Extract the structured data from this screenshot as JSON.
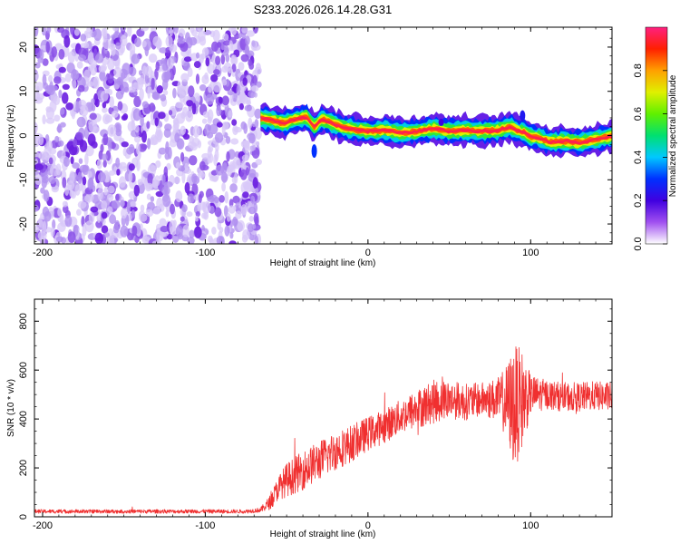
{
  "title": "S233.2026.026.14.28.G31",
  "chart_data": [
    {
      "type": "heatmap",
      "id": "spectrogram",
      "xlabel": "Height of straight line (km)",
      "ylabel": "Frequency (Hz)",
      "xlim": [
        -205,
        150
      ],
      "ylim": [
        -24.5,
        24.5
      ],
      "xticks": [
        -200,
        -100,
        0,
        100
      ],
      "yticks": [
        -20,
        -10,
        0,
        10,
        20
      ],
      "noise_region_x": [
        -205,
        -67
      ],
      "signal_ridge": {
        "x": [
          -66,
          -60,
          -52,
          -45,
          -38,
          -33,
          -28,
          -22,
          -15,
          -8,
          0,
          10,
          20,
          30,
          40,
          50,
          60,
          70,
          80,
          88,
          92,
          96,
          100,
          105,
          112,
          120,
          130,
          140,
          150
        ],
        "freq": [
          4,
          3.5,
          2.8,
          3.6,
          4.2,
          2.0,
          3.8,
          2.8,
          1.8,
          1.4,
          1.0,
          1.2,
          0.6,
          0.9,
          1.6,
          1.0,
          1.2,
          1.0,
          1.2,
          2.0,
          1.0,
          0.8,
          -0.2,
          -0.5,
          -1.5,
          -1.2,
          -1.6,
          -0.8,
          -0.2
        ]
      },
      "colorbar": {
        "label": "Normalized spectral amplitude",
        "range": [
          0.0,
          1.0
        ],
        "ticks": [
          0.0,
          0.2,
          0.4,
          0.6,
          0.8
        ],
        "tick_labels": [
          "0.0",
          "0.2",
          "0.4",
          "0.6",
          "0.8"
        ],
        "colors": [
          "#ffffff",
          "#a050f0",
          "#4000e0",
          "#0030ff",
          "#00c8ff",
          "#00e070",
          "#60f000",
          "#e0f000",
          "#ffa000",
          "#ff2000",
          "#ff2080"
        ]
      }
    },
    {
      "type": "line",
      "id": "snr",
      "xlabel": "Height of straight line (km)",
      "ylabel": "SNR (10 * v/v)",
      "xlim": [
        -205,
        150
      ],
      "ylim": [
        0,
        890
      ],
      "xticks": [
        -200,
        -100,
        0,
        100
      ],
      "yticks": [
        0,
        200,
        400,
        600,
        800
      ],
      "color": "#f03030",
      "envelope": {
        "x": [
          -205,
          -140,
          -75,
          -66,
          -60,
          -55,
          -50,
          -40,
          -30,
          -20,
          -10,
          0,
          10,
          20,
          30,
          40,
          50,
          60,
          70,
          80,
          85,
          90,
          95,
          100,
          110,
          120,
          130,
          140,
          150
        ],
        "mean": [
          22,
          22,
          22,
          28,
          60,
          120,
          150,
          190,
          230,
          270,
          300,
          340,
          370,
          410,
          440,
          470,
          480,
          470,
          480,
          480,
          470,
          450,
          480,
          500,
          500,
          490,
          490,
          495,
          490
        ],
        "spread": [
          8,
          8,
          8,
          10,
          30,
          50,
          70,
          80,
          80,
          80,
          75,
          70,
          70,
          70,
          80,
          90,
          80,
          75,
          70,
          90,
          150,
          260,
          200,
          80,
          60,
          60,
          60,
          60,
          60
        ]
      }
    }
  ]
}
